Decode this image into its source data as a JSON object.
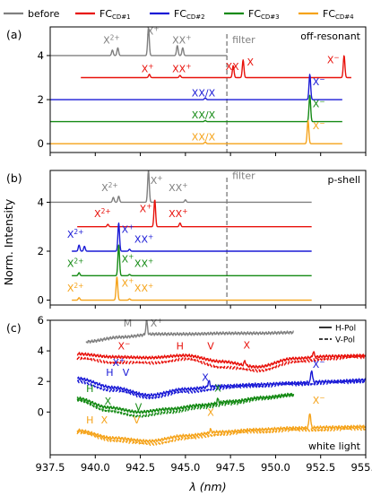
{
  "legend": [
    {
      "label": "before",
      "sub": "",
      "color": "#808080"
    },
    {
      "label": "FC",
      "sub": "CD#1",
      "color": "#e8120c"
    },
    {
      "label": "FC",
      "sub": "CD#2",
      "color": "#1a1ad6"
    },
    {
      "label": "FC",
      "sub": "CD#3",
      "color": "#148a14"
    },
    {
      "label": "FC",
      "sub": "CD#4",
      "color": "#f5a31a"
    }
  ],
  "ylabel": "Norm. Intensity",
  "xlabel": "λ (nm)",
  "filter_label": "filter",
  "chart_data": [
    {
      "panel": "(a)",
      "title": "off-resonant",
      "type": "line",
      "xlim": [
        937.5,
        955.0
      ],
      "ylim": [
        -0.4,
        5.3
      ],
      "yticks": [
        0,
        2,
        4
      ],
      "ytick_labels": [
        "0",
        "2",
        "4"
      ],
      "xticks": [
        937.5,
        940.0,
        942.5,
        945.0,
        947.5,
        950.0,
        952.5,
        955.0
      ],
      "filter_x": 947.3,
      "series": [
        {
          "name": "before",
          "color": "#808080",
          "offset": 4,
          "x_range": [
            937.5,
            947.3
          ],
          "peaks": [
            [
              940.95,
              0.25
            ],
            [
              941.25,
              0.35
            ],
            [
              942.95,
              1.25
            ],
            [
              944.55,
              0.45
            ],
            [
              944.85,
              0.35
            ]
          ]
        },
        {
          "name": "FC CD#1",
          "color": "#e8120c",
          "offset": 3,
          "x_range": [
            939.2,
            954.2
          ],
          "peaks": [
            [
              943.0,
              0.15
            ],
            [
              944.7,
              0.1
            ],
            [
              947.65,
              0.55
            ],
            [
              948.2,
              0.8
            ],
            [
              953.8,
              1.0
            ]
          ]
        },
        {
          "name": "FC CD#2",
          "color": "#1a1ad6",
          "offset": 2,
          "x_range": [
            937.5,
            953.7
          ],
          "peaks": [
            [
              946.1,
              0.08
            ],
            [
              951.9,
              1.15
            ]
          ]
        },
        {
          "name": "FC CD#3",
          "color": "#148a14",
          "offset": 1,
          "x_range": [
            937.5,
            953.7
          ],
          "peaks": [
            [
              946.1,
              0.05
            ],
            [
              951.9,
              1.2
            ]
          ]
        },
        {
          "name": "FC CD#4",
          "color": "#f5a31a",
          "offset": 0,
          "x_range": [
            937.5,
            953.7
          ],
          "peaks": [
            [
              946.1,
              0.08
            ],
            [
              951.8,
              1.05
            ]
          ]
        }
      ],
      "annotations": [
        {
          "text": "X",
          "sup": "2+",
          "x": 940.9,
          "y": 4.55,
          "color": "#808080"
        },
        {
          "text": "X",
          "sup": "+",
          "x": 943.2,
          "y": 4.95,
          "color": "#808080"
        },
        {
          "text": "XX",
          "sup": "+",
          "x": 944.8,
          "y": 4.55,
          "color": "#808080"
        },
        {
          "text": "X",
          "sup": "+",
          "x": 942.9,
          "y": 3.25,
          "color": "#e8120c"
        },
        {
          "text": "XX",
          "sup": "+",
          "x": 944.8,
          "y": 3.25,
          "color": "#e8120c"
        },
        {
          "text": "XX",
          "sup": "",
          "x": 947.6,
          "y": 3.35,
          "color": "#e8120c"
        },
        {
          "text": "X",
          "sup": "",
          "x": 948.6,
          "y": 3.55,
          "color": "#e8120c"
        },
        {
          "text": "X",
          "sup": "−",
          "x": 953.2,
          "y": 3.65,
          "color": "#e8120c"
        },
        {
          "text": "XX/X",
          "sup": "",
          "x": 946.0,
          "y": 2.15,
          "color": "#1a1ad6"
        },
        {
          "text": "X",
          "sup": "−",
          "x": 952.4,
          "y": 2.65,
          "color": "#1a1ad6"
        },
        {
          "text": "XX/X",
          "sup": "",
          "x": 946.0,
          "y": 1.15,
          "color": "#148a14"
        },
        {
          "text": "X",
          "sup": "−",
          "x": 952.4,
          "y": 1.65,
          "color": "#148a14"
        },
        {
          "text": "XX/X",
          "sup": "",
          "x": 946.0,
          "y": 0.15,
          "color": "#f5a31a"
        },
        {
          "text": "X",
          "sup": "−",
          "x": 952.4,
          "y": 0.65,
          "color": "#f5a31a"
        }
      ]
    },
    {
      "panel": "(b)",
      "title": "p-shell",
      "type": "line",
      "xlim": [
        937.5,
        955.0
      ],
      "ylim": [
        -0.2,
        5.3
      ],
      "yticks": [
        0,
        2,
        4
      ],
      "ytick_labels": [
        "0",
        "2",
        "4"
      ],
      "xticks": [
        937.5,
        940.0,
        942.5,
        945.0,
        947.5,
        950.0,
        952.5,
        955.0
      ],
      "filter_x": 947.3,
      "series": [
        {
          "name": "before",
          "color": "#808080",
          "offset": 4,
          "x_range": [
            937.5,
            952.0
          ],
          "peaks": [
            [
              941.0,
              0.2
            ],
            [
              941.3,
              0.25
            ],
            [
              942.95,
              1.3
            ],
            [
              945.0,
              0.1
            ]
          ]
        },
        {
          "name": "FC CD#1",
          "color": "#e8120c",
          "offset": 3,
          "x_range": [
            939.0,
            952.0
          ],
          "peaks": [
            [
              940.7,
              0.1
            ],
            [
              943.3,
              1.1
            ],
            [
              944.7,
              0.15
            ]
          ]
        },
        {
          "name": "FC CD#2",
          "color": "#1a1ad6",
          "offset": 2,
          "x_range": [
            938.7,
            952.0
          ],
          "peaks": [
            [
              939.1,
              0.25
            ],
            [
              939.4,
              0.2
            ],
            [
              941.3,
              1.15
            ],
            [
              941.9,
              0.08
            ]
          ]
        },
        {
          "name": "FC CD#3",
          "color": "#148a14",
          "offset": 1,
          "x_range": [
            938.7,
            952.0
          ],
          "peaks": [
            [
              939.1,
              0.12
            ],
            [
              941.3,
              1.25
            ],
            [
              941.9,
              0.05
            ]
          ]
        },
        {
          "name": "FC CD#4",
          "color": "#f5a31a",
          "offset": 0,
          "x_range": [
            938.7,
            952.0
          ],
          "peaks": [
            [
              939.1,
              0.1
            ],
            [
              941.2,
              0.95
            ],
            [
              941.9,
              0.05
            ]
          ]
        }
      ],
      "annotations": [
        {
          "text": "X",
          "sup": "2+",
          "x": 940.8,
          "y": 4.45,
          "color": "#808080"
        },
        {
          "text": "X",
          "sup": "+",
          "x": 943.4,
          "y": 4.75,
          "color": "#808080"
        },
        {
          "text": "XX",
          "sup": "+",
          "x": 944.6,
          "y": 4.45,
          "color": "#808080"
        },
        {
          "text": "X",
          "sup": "2+",
          "x": 940.4,
          "y": 3.4,
          "color": "#e8120c"
        },
        {
          "text": "X",
          "sup": "+",
          "x": 942.8,
          "y": 3.6,
          "color": "#e8120c"
        },
        {
          "text": "XX",
          "sup": "+",
          "x": 944.6,
          "y": 3.4,
          "color": "#e8120c"
        },
        {
          "text": "X",
          "sup": "2+",
          "x": 938.9,
          "y": 2.55,
          "color": "#1a1ad6"
        },
        {
          "text": "X",
          "sup": "+",
          "x": 941.8,
          "y": 2.75,
          "color": "#1a1ad6"
        },
        {
          "text": "XX",
          "sup": "+",
          "x": 942.7,
          "y": 2.35,
          "color": "#1a1ad6"
        },
        {
          "text": "X",
          "sup": "2+",
          "x": 938.9,
          "y": 1.35,
          "color": "#148a14"
        },
        {
          "text": "X",
          "sup": "+",
          "x": 941.8,
          "y": 1.55,
          "color": "#148a14"
        },
        {
          "text": "XX",
          "sup": "+",
          "x": 942.7,
          "y": 1.35,
          "color": "#148a14"
        },
        {
          "text": "X",
          "sup": "2+",
          "x": 938.9,
          "y": 0.35,
          "color": "#f5a31a"
        },
        {
          "text": "X",
          "sup": "+",
          "x": 941.8,
          "y": 0.55,
          "color": "#f5a31a"
        },
        {
          "text": "XX",
          "sup": "+",
          "x": 942.7,
          "y": 0.35,
          "color": "#f5a31a"
        }
      ]
    },
    {
      "panel": "(c)",
      "title": "white light",
      "type": "line",
      "xlim": [
        937.5,
        955.0
      ],
      "ylim": [
        -2.8,
        6.0
      ],
      "yticks": [
        0,
        2,
        4,
        6
      ],
      "ytick_labels": [
        "0",
        "2",
        "4",
        "6"
      ],
      "xticks": [
        937.5,
        940.0,
        942.5,
        945.0,
        947.5,
        950.0,
        952.5,
        955.0
      ],
      "xtick_labels": [
        "937.5",
        "940.0",
        "942.5",
        "945.0",
        "947.5",
        "950.0",
        "952.5",
        "955.0"
      ],
      "legend": [
        {
          "label": "H-Pol",
          "dash": false
        },
        {
          "label": "V-Pol",
          "dash": true
        }
      ],
      "series": [
        {
          "name": "before",
          "color": "#808080",
          "x_range": [
            939.5,
            951.0
          ],
          "base": [
            4.6,
            4.9,
            5.1,
            5.1,
            5.15,
            5.15,
            5.2
          ],
          "peaks": [
            [
              942.85,
              0.9
            ]
          ]
        },
        {
          "name": "FC CD#1 H",
          "color": "#e8120c",
          "dash": false,
          "x_range": [
            939.0,
            955.0
          ],
          "base": [
            3.8,
            3.6,
            3.55,
            3.7,
            3.3,
            2.95,
            3.5,
            3.65,
            3.7
          ],
          "peaks": [
            [
              948.3,
              0.3
            ],
            [
              952.1,
              0.35
            ]
          ]
        },
        {
          "name": "FC CD#1 V",
          "color": "#e8120c",
          "dash": true,
          "x_range": [
            939.0,
            955.0
          ],
          "base": [
            3.5,
            3.25,
            3.2,
            3.45,
            2.95,
            2.7,
            3.25,
            3.5,
            3.6
          ],
          "peaks": []
        },
        {
          "name": "FC CD#2 H",
          "color": "#1a1ad6",
          "dash": false,
          "x_range": [
            939.0,
            955.0
          ],
          "base": [
            2.2,
            1.6,
            1.1,
            1.5,
            1.7,
            1.8,
            1.9,
            2.0,
            2.1
          ],
          "peaks": [
            [
              946.3,
              0.4
            ],
            [
              952.0,
              0.8
            ]
          ]
        },
        {
          "name": "FC CD#2 V",
          "color": "#1a1ad6",
          "dash": true,
          "x_range": [
            939.0,
            955.0
          ],
          "base": [
            2.0,
            1.4,
            0.95,
            1.3,
            1.55,
            1.7,
            1.8,
            1.9,
            2.0
          ],
          "peaks": []
        },
        {
          "name": "FC CD#3 H",
          "color": "#148a14",
          "dash": false,
          "x_range": [
            939.0,
            951.0
          ],
          "base": [
            0.9,
            0.3,
            0.0,
            0.2,
            0.45,
            0.7,
            0.95,
            1.15
          ],
          "peaks": [
            [
              946.8,
              0.25
            ]
          ]
        },
        {
          "name": "FC CD#3 V",
          "color": "#148a14",
          "dash": true,
          "x_range": [
            939.0,
            951.0
          ],
          "base": [
            0.8,
            0.1,
            -0.25,
            0.0,
            0.3,
            0.55,
            0.85,
            1.05
          ],
          "peaks": []
        },
        {
          "name": "FC CD#4 H",
          "color": "#f5a31a",
          "dash": false,
          "x_range": [
            939.0,
            955.0
          ],
          "base": [
            -1.2,
            -1.7,
            -1.9,
            -1.55,
            -1.3,
            -1.15,
            -1.05,
            -1.0,
            -0.95
          ],
          "peaks": [
            [
              946.4,
              0.2
            ],
            [
              951.9,
              1.0
            ]
          ]
        },
        {
          "name": "FC CD#4 V",
          "color": "#f5a31a",
          "dash": true,
          "x_range": [
            939.0,
            955.0
          ],
          "base": [
            -1.35,
            -1.85,
            -2.1,
            -1.75,
            -1.45,
            -1.3,
            -1.2,
            -1.15,
            -1.1
          ],
          "peaks": []
        }
      ],
      "annotations": [
        {
          "text": "M",
          "sup": "",
          "x": 941.8,
          "y": 5.6,
          "color": "#808080"
        },
        {
          "text": "X",
          "sup": "+",
          "x": 943.4,
          "y": 5.6,
          "color": "#808080"
        },
        {
          "text": "X",
          "sup": "−",
          "x": 941.6,
          "y": 4.1,
          "color": "#e8120c"
        },
        {
          "text": "H",
          "sup": "",
          "x": 944.7,
          "y": 4.1,
          "color": "#e8120c"
        },
        {
          "text": "V",
          "sup": "",
          "x": 946.4,
          "y": 4.1,
          "color": "#e8120c"
        },
        {
          "text": "X",
          "sup": "",
          "x": 948.4,
          "y": 4.15,
          "color": "#e8120c"
        },
        {
          "text": "X",
          "sup": "+",
          "x": 941.3,
          "y": 3.0,
          "color": "#1a1ad6"
        },
        {
          "text": "H",
          "sup": "",
          "x": 940.8,
          "y": 2.35,
          "color": "#1a1ad6"
        },
        {
          "text": "V",
          "sup": "",
          "x": 941.7,
          "y": 2.35,
          "color": "#1a1ad6"
        },
        {
          "text": "X",
          "sup": "",
          "x": 946.1,
          "y": 2.05,
          "color": "#1a1ad6"
        },
        {
          "text": "X",
          "sup": "−",
          "x": 952.4,
          "y": 2.9,
          "color": "#1a1ad6"
        },
        {
          "text": "H",
          "sup": "",
          "x": 939.7,
          "y": 1.3,
          "color": "#148a14"
        },
        {
          "text": "X",
          "sup": "",
          "x": 940.7,
          "y": 0.5,
          "color": "#148a14"
        },
        {
          "text": "V",
          "sup": "",
          "x": 942.4,
          "y": 0.1,
          "color": "#148a14"
        },
        {
          "text": "X",
          "sup": "",
          "x": 946.8,
          "y": 1.35,
          "color": "#148a14"
        },
        {
          "text": "X",
          "sup": "−",
          "x": 952.4,
          "y": 0.55,
          "color": "#f5a31a"
        },
        {
          "text": "X",
          "sup": "",
          "x": 946.4,
          "y": -0.25,
          "color": "#f5a31a"
        },
        {
          "text": "H",
          "sup": "",
          "x": 939.7,
          "y": -0.75,
          "color": "#f5a31a"
        },
        {
          "text": "X",
          "sup": "",
          "x": 940.5,
          "y": -0.75,
          "color": "#f5a31a"
        },
        {
          "text": "V",
          "sup": "",
          "x": 942.3,
          "y": -0.75,
          "color": "#f5a31a"
        }
      ]
    }
  ]
}
